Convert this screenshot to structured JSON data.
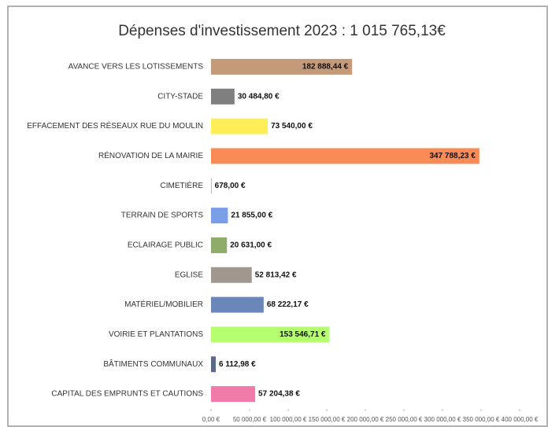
{
  "chart_data": {
    "type": "bar",
    "orientation": "horizontal",
    "title": "Dépenses d'investissement 2023 : 1 015 765,13€",
    "categories": [
      "AVANCE VERS LES LOTISSEMENTS",
      "CITY-STADE",
      "EFFACEMENT DES RÉSEAUX RUE DU MOULIN",
      "RÉNOVATION DE LA MAIRIE",
      "CIMETIÈRE",
      "TERRAIN DE SPORTS",
      "ECLAIRAGE PUBLIC",
      "EGLISE",
      "MATÉRIEL/MOBILIER",
      "VOIRIE ET PLANTATIONS",
      "BÂTIMENTS COMMUNAUX",
      "CAPITAL DES EMPRUNTS ET CAUTIONS"
    ],
    "values": [
      182888.44,
      30484.8,
      73540.0,
      347788.23,
      678.0,
      21855.0,
      20631.0,
      52813.42,
      68222.17,
      153546.71,
      6112.98,
      57204.38
    ],
    "value_labels": [
      "182 888,44 €",
      "30 484,80 €",
      "73 540,00 €",
      "347 788,23 €",
      "678,00 €",
      "21 855,00 €",
      "20 631,00 €",
      "52 813,42 €",
      "68 222,17 €",
      "153 546,71 €",
      "6 112,98 €",
      "57 204,38 €"
    ],
    "colors": [
      "#c49a7a",
      "#7f7f7f",
      "#ffee58",
      "#f98b57",
      "#9e9e9e",
      "#7a9ee8",
      "#8fac6a",
      "#a09890",
      "#6b86b8",
      "#b3ff70",
      "#5a6a8a",
      "#f07aa8"
    ],
    "xlim": [
      0,
      400000
    ],
    "xticks": [
      {
        "value": 0,
        "label": "0,00 €"
      },
      {
        "value": 50000,
        "label": "50 000,00 €"
      },
      {
        "value": 100000,
        "label": "100 000,00 €"
      },
      {
        "value": 150000,
        "label": "150 000,00 €"
      },
      {
        "value": 200000,
        "label": "200 000,00 €"
      },
      {
        "value": 250000,
        "label": "250 000,00 €"
      },
      {
        "value": 300000,
        "label": "300 000,00 €"
      },
      {
        "value": 350000,
        "label": "350 000,00 €"
      },
      {
        "value": 400000,
        "label": "400 000,00 €"
      }
    ]
  }
}
